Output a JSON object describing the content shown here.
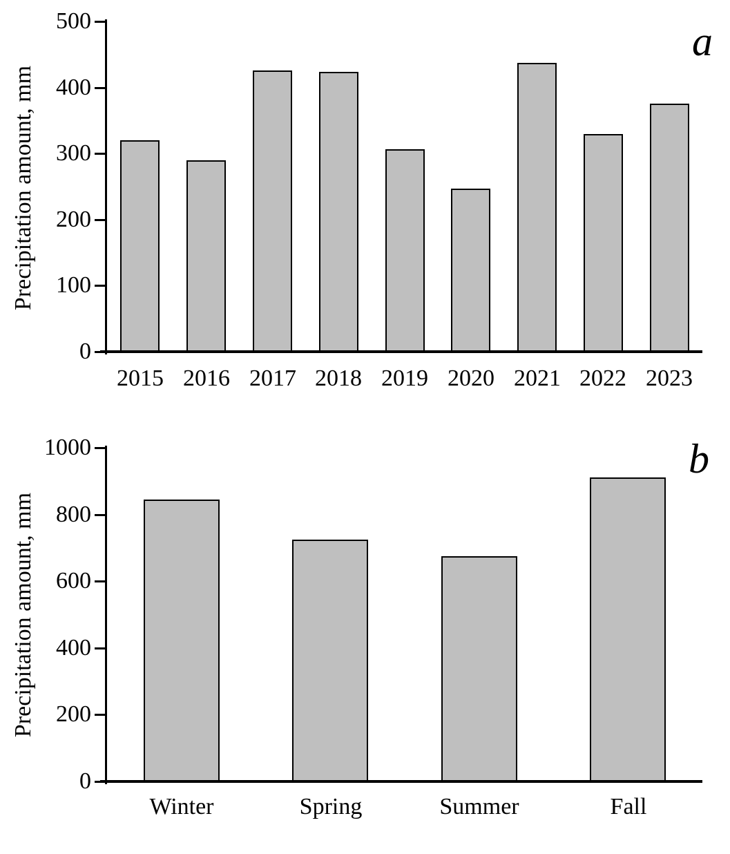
{
  "figure": {
    "background": "#ffffff",
    "bar_fill": "#bfbfbf",
    "bar_border": "#000000",
    "axis_color": "#000000",
    "text_color": "#000000"
  },
  "chart_data": [
    {
      "id": "a",
      "type": "bar",
      "panel_label": "a",
      "title": "",
      "xlabel": "",
      "ylabel": "Precipitation amount, mm",
      "categories": [
        "2015",
        "2016",
        "2017",
        "2018",
        "2019",
        "2020",
        "2021",
        "2022",
        "2023"
      ],
      "values": [
        320,
        290,
        426,
        424,
        307,
        247,
        437,
        330,
        375
      ],
      "ylim": [
        0,
        500
      ],
      "yticks": [
        0,
        100,
        200,
        300,
        400,
        500
      ],
      "grid": false,
      "legend": "none"
    },
    {
      "id": "b",
      "type": "bar",
      "panel_label": "b",
      "title": "",
      "xlabel": "",
      "ylabel": "Precipitation amount, mm",
      "categories": [
        "Winter",
        "Spring",
        "Summer",
        "Fall"
      ],
      "values": [
        845,
        725,
        675,
        910
      ],
      "ylim": [
        0,
        1000
      ],
      "yticks": [
        0,
        200,
        400,
        600,
        800,
        1000
      ],
      "grid": false,
      "legend": "none"
    }
  ]
}
